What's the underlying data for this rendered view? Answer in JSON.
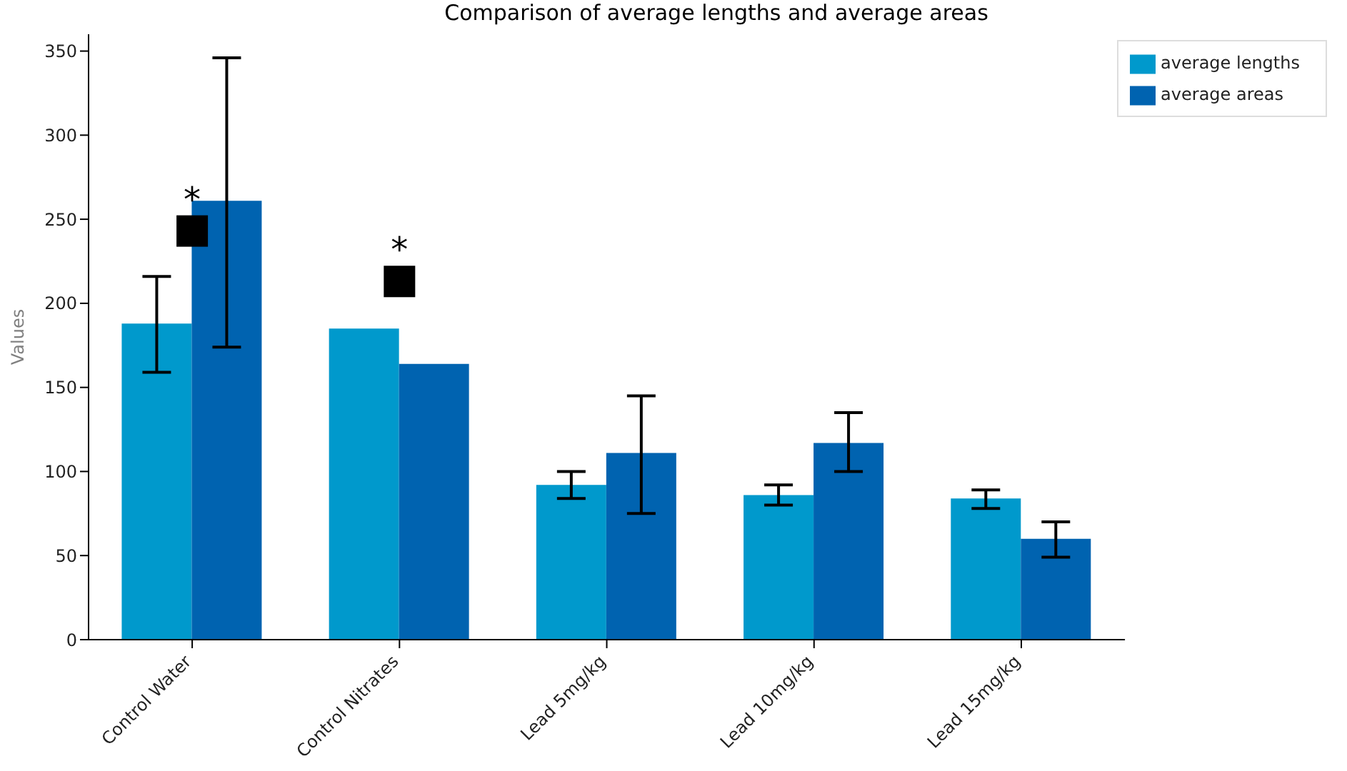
{
  "chart_data": {
    "type": "bar",
    "title": "Comparison of average lengths and average areas",
    "ylabel": "Values",
    "categories": [
      "Control Water",
      "Control Nitrates",
      "Lead 5mg/kg",
      "Lead 10mg/kg",
      "Lead 15mg/kg"
    ],
    "series": [
      {
        "name": "average lengths",
        "color": "#0099cc",
        "values": [
          188,
          185,
          92,
          86,
          84
        ],
        "errors": [
          [
            159,
            216
          ],
          null,
          [
            84,
            100
          ],
          [
            80,
            92
          ],
          [
            78,
            89
          ]
        ]
      },
      {
        "name": "average areas",
        "color": "#0063b0",
        "values": [
          261,
          164,
          111,
          117,
          60
        ],
        "errors": [
          [
            174,
            346
          ],
          null,
          [
            75,
            145
          ],
          [
            100,
            135
          ],
          [
            49,
            70
          ]
        ]
      }
    ],
    "ylim": [
      0,
      360
    ],
    "yticks": [
      0,
      50,
      100,
      150,
      200,
      250,
      300,
      350
    ],
    "legend": "top right",
    "annotations": [
      {
        "text": "*",
        "x": "Control Water",
        "y": 243
      },
      {
        "text": "*",
        "x": "Control Nitrates",
        "y": 213
      }
    ]
  }
}
